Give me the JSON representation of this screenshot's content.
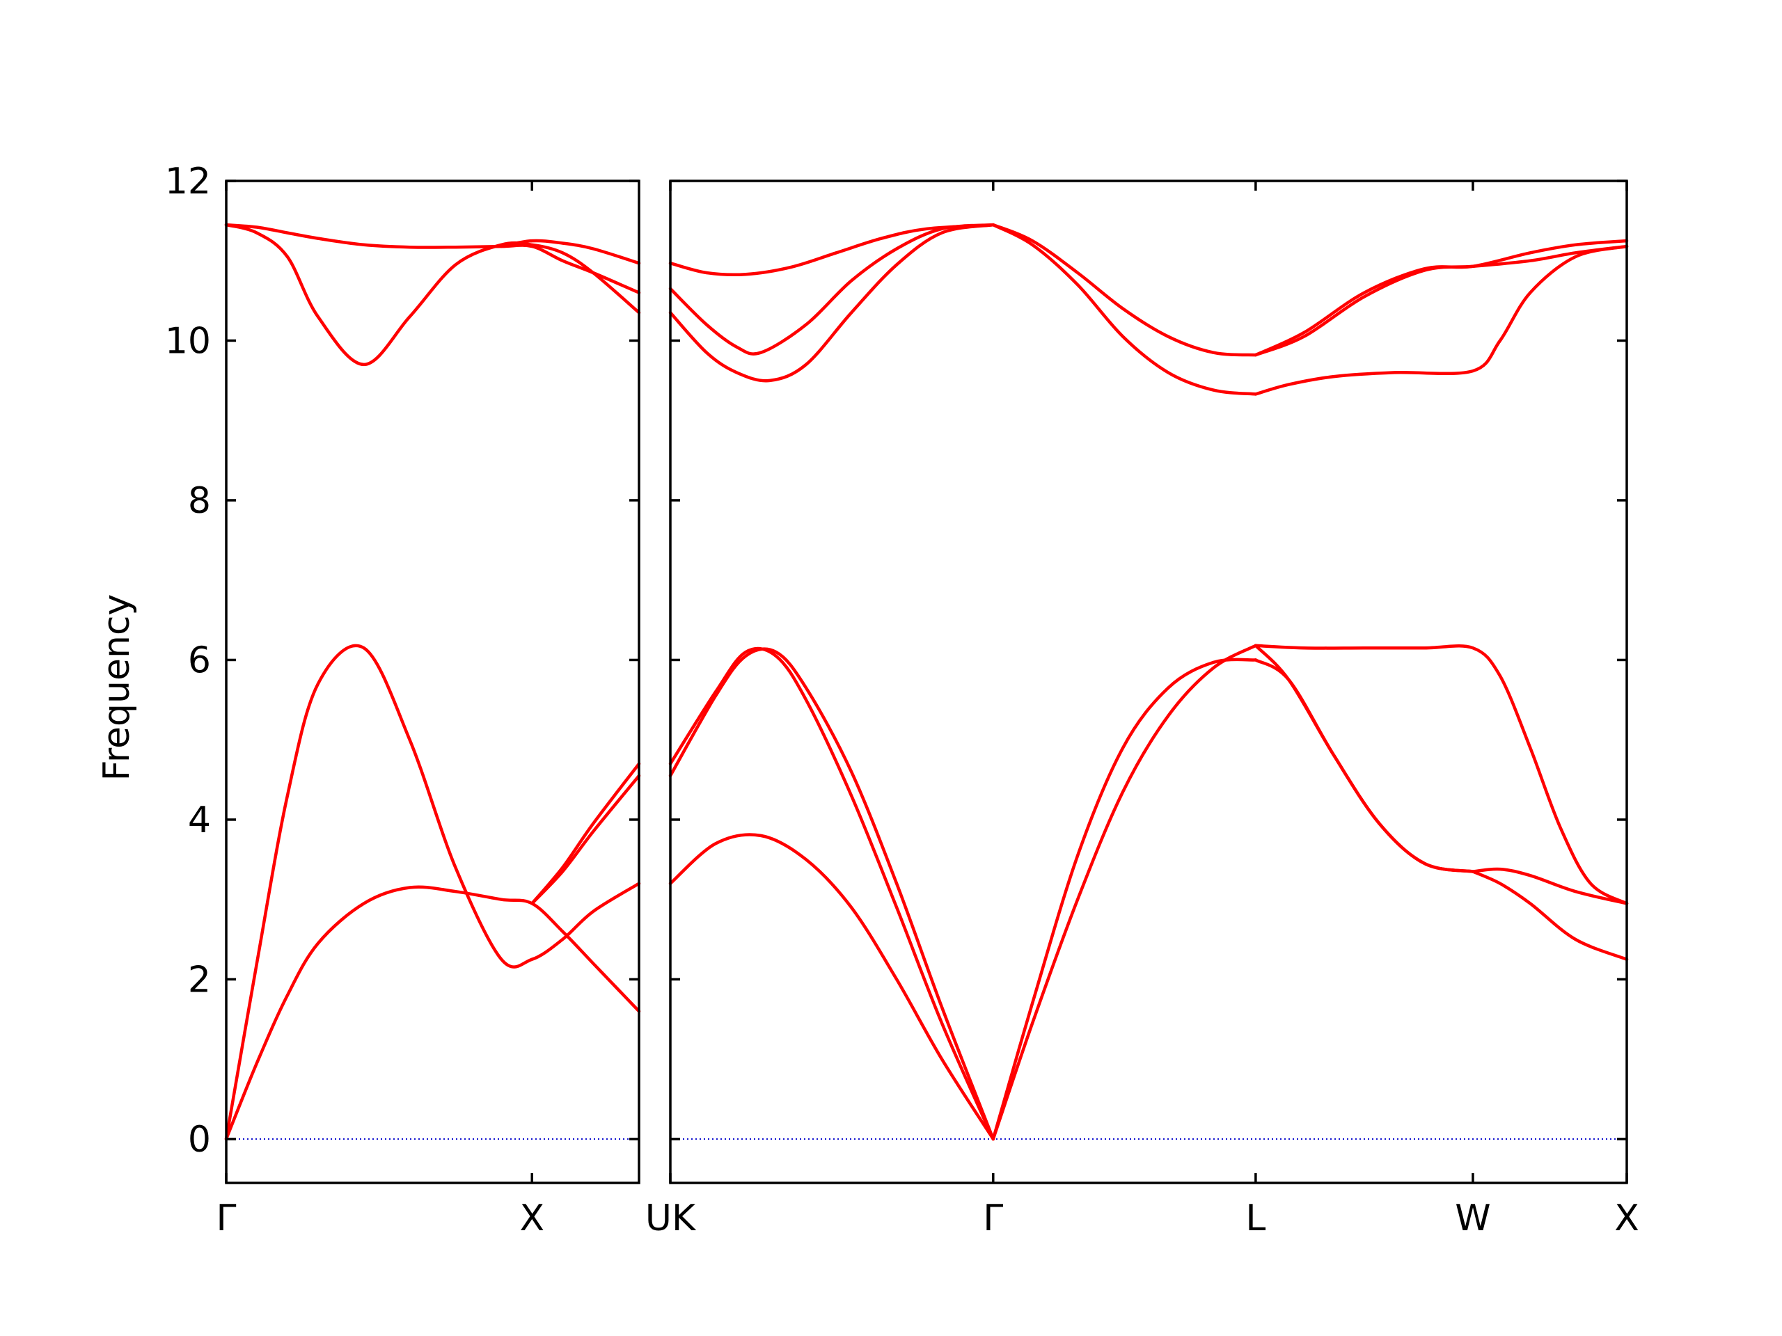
{
  "chart_data": {
    "type": "line",
    "ylabel": "Frequency",
    "ylim": [
      -0.55,
      12
    ],
    "yticks": [
      0,
      2,
      4,
      6,
      8,
      10,
      12
    ],
    "grid": false,
    "colors": {
      "band": "#ff0000",
      "zero_line": "#0000cc",
      "axes": "#000000"
    },
    "panels": [
      {
        "xlim": [
          0,
          1.35
        ],
        "xticks": [
          {
            "x": 0,
            "label": "Γ"
          },
          {
            "x": 1.0,
            "label": "X"
          }
        ],
        "series": [
          {
            "x": [
              0,
              0.1,
              0.2,
              0.3,
              0.45,
              0.6,
              0.75,
              0.9,
              1.0,
              1.1,
              1.2,
              1.35
            ],
            "y": [
              0,
              0.95,
              1.8,
              2.45,
              2.95,
              3.15,
              3.1,
              3.0,
              2.95,
              2.6,
              2.2,
              1.6
            ]
          },
          {
            "x": [
              0,
              0.1,
              0.2,
              0.3,
              0.45,
              0.6,
              0.75,
              0.9,
              1.0,
              1.1,
              1.2,
              1.35
            ],
            "y": [
              0,
              2.2,
              4.3,
              5.7,
              6.15,
              5.0,
              3.4,
              2.25,
              2.25,
              2.5,
              2.85,
              3.2
            ]
          },
          {
            "x": [
              1.0,
              1.1,
              1.2,
              1.35
            ],
            "y": [
              2.95,
              3.4,
              3.95,
              4.7
            ]
          },
          {
            "x": [
              1.0,
              1.1,
              1.2,
              1.35
            ],
            "y": [
              2.95,
              3.35,
              3.85,
              4.55
            ]
          },
          {
            "x": [
              0,
              0.1,
              0.2,
              0.3,
              0.45,
              0.6,
              0.75,
              0.9,
              1.0,
              1.1,
              1.2,
              1.35
            ],
            "y": [
              11.45,
              11.35,
              11.05,
              10.3,
              9.7,
              10.3,
              10.95,
              11.2,
              11.2,
              11.1,
              10.85,
              10.35
            ]
          },
          {
            "x": [
              0,
              0.1,
              0.2,
              0.3,
              0.45,
              0.6,
              0.75,
              0.9,
              1.0,
              1.1,
              1.2,
              1.35
            ],
            "y": [
              11.45,
              11.42,
              11.35,
              11.28,
              11.2,
              11.17,
              11.17,
              11.18,
              11.18,
              11.0,
              10.85,
              10.6
            ]
          },
          {
            "x": [
              0.9,
              1.0,
              1.1,
              1.2,
              1.35
            ],
            "y": [
              11.18,
              11.25,
              11.22,
              11.15,
              10.97
            ]
          }
        ]
      },
      {
        "xlim": [
          0,
          3.17
        ],
        "xticks": [
          {
            "x": 0,
            "label": "UK"
          },
          {
            "x": 1.07,
            "label": "Γ"
          },
          {
            "x": 1.94,
            "label": "L"
          },
          {
            "x": 2.66,
            "label": "W"
          },
          {
            "x": 3.17,
            "label": "X"
          }
        ],
        "series": [
          {
            "x": [
              0,
              0.15,
              0.3,
              0.45,
              0.6,
              0.75,
              0.9,
              1.07
            ],
            "y": [
              3.2,
              3.7,
              3.8,
              3.5,
              2.9,
              2.0,
              1.0,
              0
            ]
          },
          {
            "x": [
              0,
              0.15,
              0.25,
              0.35,
              0.45,
              0.6,
              0.75,
              0.9,
              1.07
            ],
            "y": [
              4.55,
              5.55,
              6.05,
              6.1,
              5.65,
              4.6,
              3.2,
              1.65,
              0
            ]
          },
          {
            "x": [
              0,
              0.15,
              0.25,
              0.35,
              0.45,
              0.6,
              0.75,
              0.9,
              1.07
            ],
            "y": [
              4.7,
              5.6,
              6.1,
              6.05,
              5.5,
              4.3,
              2.9,
              1.45,
              0
            ]
          },
          {
            "x": [
              1.07,
              1.2,
              1.35,
              1.5,
              1.65,
              1.8,
              1.94
            ],
            "y": [
              0,
              1.7,
              3.55,
              4.9,
              5.65,
              5.97,
              6.0
            ]
          },
          {
            "x": [
              1.07,
              1.2,
              1.35,
              1.5,
              1.65,
              1.8,
              1.94
            ],
            "y": [
              0,
              1.45,
              3.0,
              4.35,
              5.3,
              5.9,
              6.18
            ]
          },
          {
            "x": [
              1.94,
              2.05,
              2.2,
              2.35,
              2.5,
              2.66
            ],
            "y": [
              6.18,
              5.75,
              4.8,
              3.95,
              3.45,
              3.35
            ]
          },
          {
            "x": [
              1.94,
              2.05,
              2.2,
              2.35,
              2.5,
              2.66
            ],
            "y": [
              6.0,
              5.75,
              4.8,
              3.95,
              3.45,
              3.35
            ]
          },
          {
            "x": [
              1.94,
              2.1,
              2.3,
              2.5,
              2.66,
              2.75,
              2.85,
              2.95,
              3.05,
              3.17
            ],
            "y": [
              6.18,
              6.15,
              6.15,
              6.15,
              6.15,
              5.8,
              4.9,
              3.9,
              3.2,
              2.95
            ]
          },
          {
            "x": [
              2.66,
              2.75,
              2.85,
              3.0,
              3.17
            ],
            "y": [
              3.35,
              3.38,
              3.3,
              3.1,
              2.95
            ]
          },
          {
            "x": [
              2.66,
              2.75,
              2.85,
              3.0,
              3.17
            ],
            "y": [
              3.35,
              3.2,
              2.95,
              2.5,
              2.25
            ]
          },
          {
            "x": [
              0,
              0.12,
              0.25,
              0.4,
              0.55,
              0.7,
              0.85,
              1.07
            ],
            "y": [
              10.97,
              10.85,
              10.83,
              10.92,
              11.1,
              11.28,
              11.4,
              11.45
            ]
          },
          {
            "x": [
              0,
              0.12,
              0.22,
              0.3,
              0.45,
              0.6,
              0.75,
              0.9,
              1.07
            ],
            "y": [
              10.65,
              10.2,
              9.92,
              9.85,
              10.2,
              10.75,
              11.15,
              11.4,
              11.45
            ]
          },
          {
            "x": [
              0,
              0.12,
              0.22,
              0.33,
              0.45,
              0.6,
              0.75,
              0.9,
              1.07
            ],
            "y": [
              10.35,
              9.85,
              9.6,
              9.5,
              9.7,
              10.35,
              10.95,
              11.35,
              11.45
            ]
          },
          {
            "x": [
              1.07,
              1.2,
              1.35,
              1.5,
              1.65,
              1.8,
              1.94
            ],
            "y": [
              11.45,
              11.25,
              10.85,
              10.4,
              10.05,
              9.85,
              9.82
            ]
          },
          {
            "x": [
              1.07,
              1.2,
              1.35,
              1.5,
              1.65,
              1.8,
              1.94
            ],
            "y": [
              11.45,
              11.2,
              10.7,
              10.05,
              9.6,
              9.38,
              9.33
            ]
          },
          {
            "x": [
              1.94,
              2.1,
              2.3,
              2.5,
              2.66,
              2.85,
              3.0,
              3.17
            ],
            "y": [
              9.82,
              10.05,
              10.55,
              10.88,
              10.93,
              11.0,
              11.1,
              11.18
            ]
          },
          {
            "x": [
              1.94,
              2.1,
              2.3,
              2.5,
              2.66,
              2.85,
              3.0,
              3.17
            ],
            "y": [
              9.82,
              10.1,
              10.6,
              10.9,
              10.93,
              11.1,
              11.2,
              11.25
            ]
          },
          {
            "x": [
              1.94,
              2.05,
              2.2,
              2.4,
              2.66,
              2.75,
              2.85,
              3.0,
              3.17
            ],
            "y": [
              9.33,
              9.45,
              9.55,
              9.6,
              9.62,
              10.0,
              10.6,
              11.05,
              11.18
            ]
          }
        ]
      }
    ]
  }
}
